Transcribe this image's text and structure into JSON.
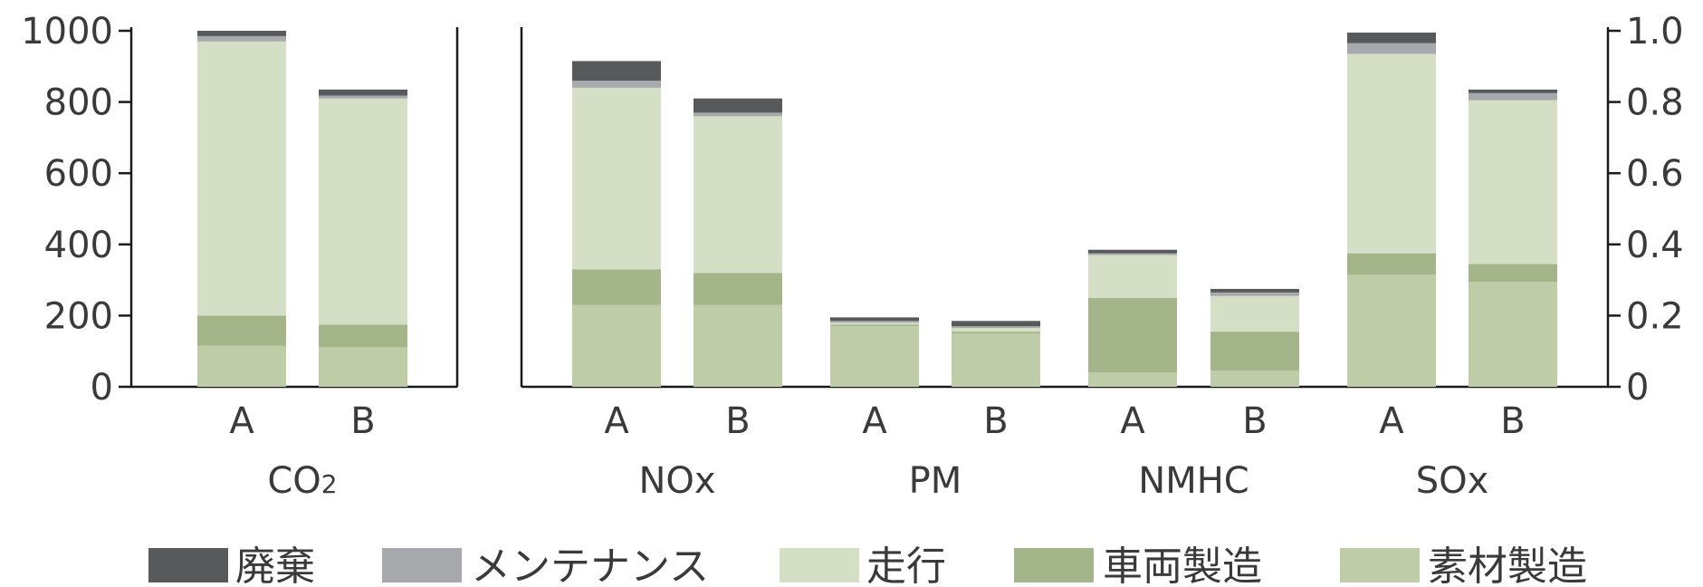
{
  "chart_data": [
    {
      "type": "bar",
      "stacked": true,
      "groups": [
        {
          "label": "CO",
          "subscript": "2",
          "categories": [
            "A",
            "B"
          ]
        }
      ],
      "ylim": [
        0,
        1000
      ],
      "yticks": [
        "0",
        "200",
        "400",
        "600",
        "800",
        "1000"
      ],
      "series": [
        {
          "name": "素材製造",
          "values": [
            115,
            112
          ]
        },
        {
          "name": "車両製造",
          "values": [
            85,
            63
          ]
        },
        {
          "name": "走行",
          "values": [
            770,
            635
          ]
        },
        {
          "name": "メンテナンス",
          "values": [
            15,
            8
          ]
        },
        {
          "name": "廃棄",
          "values": [
            15,
            17
          ]
        }
      ]
    },
    {
      "type": "bar",
      "stacked": true,
      "groups": [
        {
          "label": "NOx",
          "categories": [
            "A",
            "B"
          ]
        },
        {
          "label": "PM",
          "categories": [
            "A",
            "B"
          ]
        },
        {
          "label": "NMHC",
          "categories": [
            "A",
            "B"
          ]
        },
        {
          "label": "SOx",
          "categories": [
            "A",
            "B"
          ]
        }
      ],
      "ylim": [
        0,
        1.0
      ],
      "yticks": [
        "0",
        "0.2",
        "0.4",
        "0.6",
        "0.8",
        "1.0"
      ],
      "series": [
        {
          "name": "素材製造",
          "values": [
            0.23,
            0.23,
            0.17,
            0.15,
            0.04,
            0.045,
            0.315,
            0.295
          ]
        },
        {
          "name": "車両製造",
          "values": [
            0.1,
            0.09,
            0.005,
            0.005,
            0.21,
            0.11,
            0.06,
            0.05
          ]
        },
        {
          "name": "走行",
          "values": [
            0.51,
            0.44,
            0.005,
            0.01,
            0.12,
            0.1,
            0.56,
            0.46
          ]
        },
        {
          "name": "メンテナンス",
          "values": [
            0.02,
            0.01,
            0.005,
            0.005,
            0.005,
            0.01,
            0.03,
            0.02
          ]
        },
        {
          "name": "廃棄",
          "values": [
            0.055,
            0.04,
            0.01,
            0.015,
            0.01,
            0.01,
            0.03,
            0.01
          ]
        }
      ]
    }
  ],
  "colors": {
    "廃棄": "#58595b",
    "メンテナンス": "#a7a9ac",
    "走行": "#d5dfc5",
    "車両製造": "#a5b58a",
    "素材製造": "#bfcca8"
  },
  "legend": {
    "placement": "bottom",
    "items": [
      "廃棄",
      "メンテナンス",
      "走行",
      "車両製造",
      "素材製造"
    ]
  }
}
